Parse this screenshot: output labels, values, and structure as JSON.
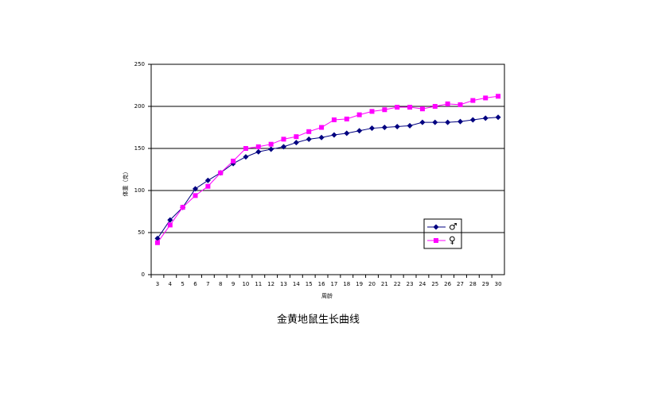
{
  "chart_data": {
    "type": "line",
    "title": "金黄地鼠生长曲线",
    "x_label": "周龄",
    "y_label": "体重（克）",
    "categories": [
      "3",
      "4",
      "5",
      "6",
      "7",
      "8",
      "9",
      "10",
      "11",
      "12",
      "13",
      "14",
      "15",
      "16",
      "17",
      "18",
      "19",
      "20",
      "21",
      "22",
      "23",
      "24",
      "25",
      "26",
      "27",
      "28",
      "29",
      "30"
    ],
    "series": [
      {
        "name": "♂",
        "color": "#000080",
        "marker": "diamond",
        "values": [
          43,
          65,
          80,
          102,
          112,
          121,
          132,
          140,
          146,
          149,
          152,
          157,
          161,
          163,
          166,
          168,
          171,
          174,
          175,
          176,
          177,
          181,
          181,
          181,
          182,
          184,
          186,
          187
        ]
      },
      {
        "name": "♀",
        "color": "#ff00ff",
        "marker": "square",
        "values": [
          38,
          59,
          80,
          94,
          105,
          121,
          135,
          150,
          152,
          155,
          161,
          164,
          170,
          175,
          184,
          185,
          190,
          194,
          196,
          199,
          199,
          197,
          200,
          203,
          202,
          207,
          210,
          212
        ]
      }
    ],
    "ylim": [
      0,
      250
    ],
    "yticks": [
      0,
      50,
      100,
      150,
      200,
      250
    ],
    "grid": true,
    "legend": "lower right"
  }
}
